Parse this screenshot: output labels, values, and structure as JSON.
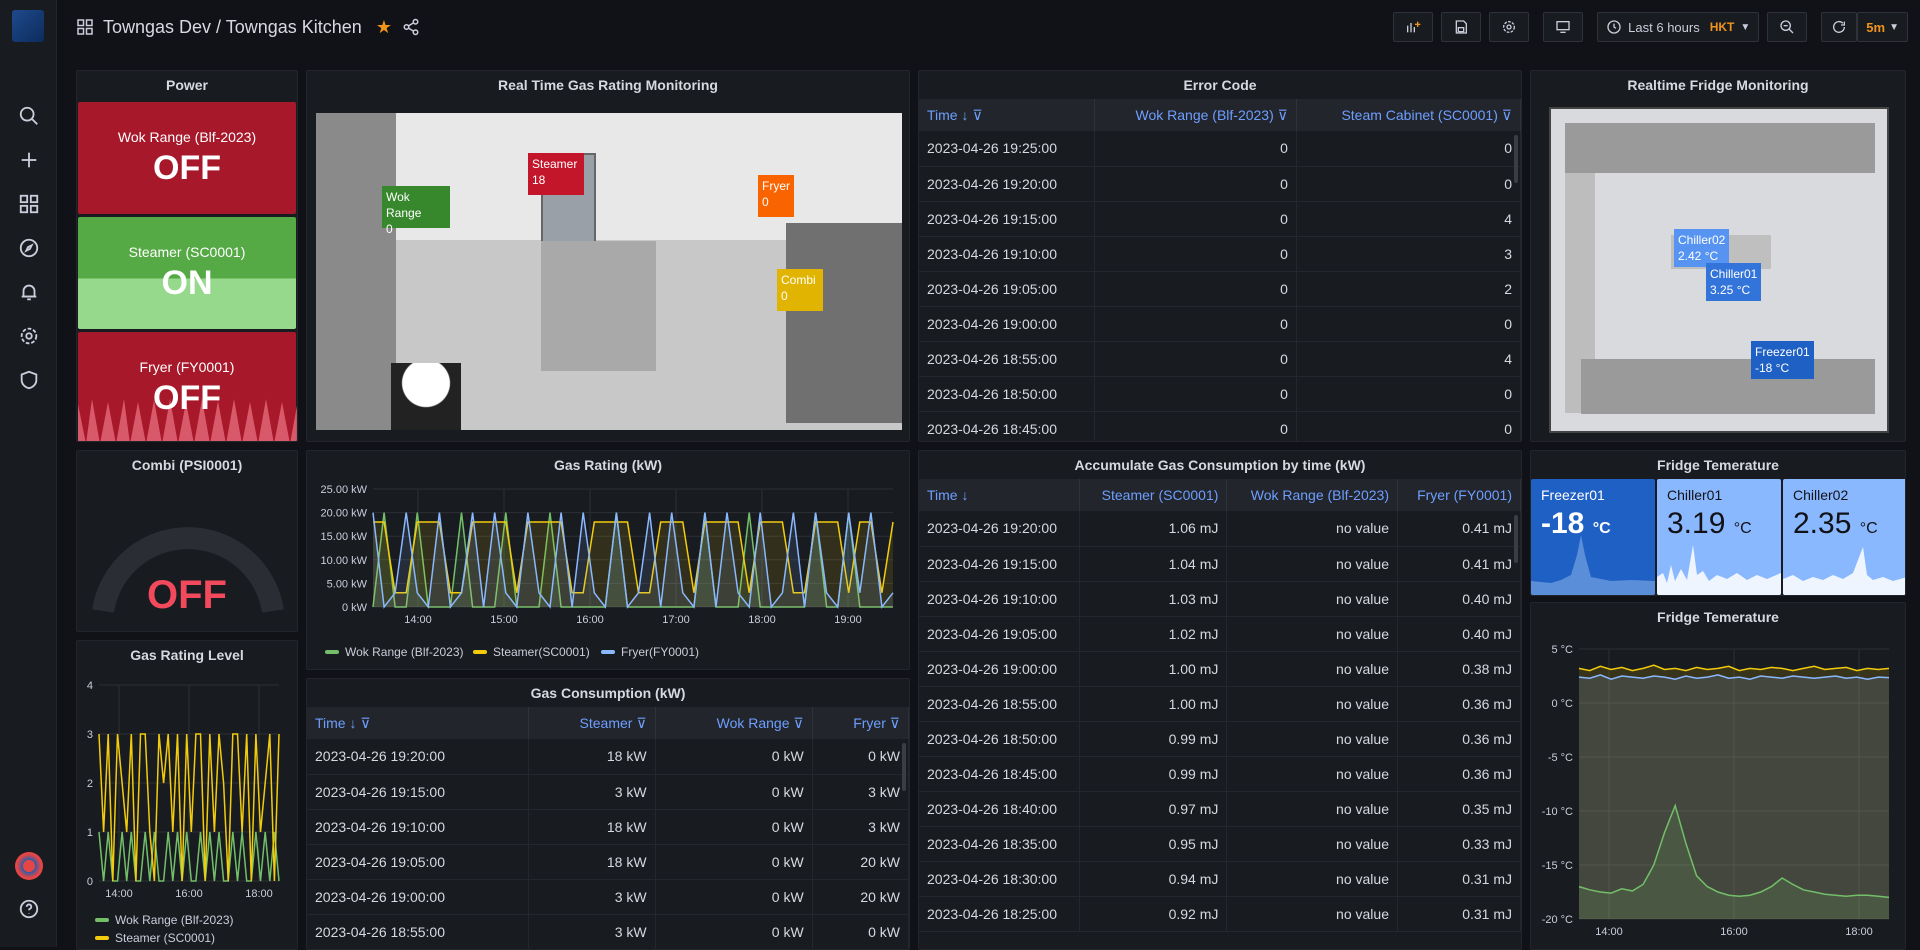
{
  "colors": {
    "red": "#a8182b",
    "green": "#55aa45",
    "blue": "#6e9fff",
    "orange": "#f0941c",
    "yellow": "#e5ac0e",
    "wok": "#73bf69",
    "steamer": "#f2cc0c",
    "fryer": "#8ab8ff"
  },
  "topbar": {
    "title": "Towngas Dev / Towngas Kitchen",
    "time_range": "Last 6 hours",
    "timezone": "HKT",
    "refresh": "5m"
  },
  "power": {
    "title": "Power",
    "items": [
      {
        "label": "Wok Range (Blf-2023)",
        "value": "OFF",
        "color": "#a8182b"
      },
      {
        "label": "Steamer (SC0001)",
        "value": "ON",
        "color": "#55aa45"
      },
      {
        "label": "Fryer (FY0001)",
        "value": "OFF",
        "color": "#a8182b"
      }
    ]
  },
  "gas_rating_monitor": {
    "title": "Real Time Gas Rating Monitoring",
    "tags": [
      {
        "name": "Wok Range",
        "value": "0",
        "color": "#37872d"
      },
      {
        "name": "Steamer",
        "value": "18",
        "color": "#c4162a"
      },
      {
        "name": "Fryer",
        "value": "0",
        "color": "#fa6400"
      },
      {
        "name": "Combi",
        "value": "0",
        "color": "#e0b400"
      }
    ]
  },
  "error_code": {
    "title": "Error Code",
    "columns": [
      "Time",
      "Wok Range (Blf-2023)",
      "Steam Cabinet (SC0001)"
    ],
    "rows": [
      [
        "2023-04-26 19:25:00",
        "0",
        "0"
      ],
      [
        "2023-04-26 19:20:00",
        "0",
        "0"
      ],
      [
        "2023-04-26 19:15:00",
        "0",
        "4"
      ],
      [
        "2023-04-26 19:10:00",
        "0",
        "3"
      ],
      [
        "2023-04-26 19:05:00",
        "0",
        "2"
      ],
      [
        "2023-04-26 19:00:00",
        "0",
        "0"
      ],
      [
        "2023-04-26 18:55:00",
        "0",
        "4"
      ],
      [
        "2023-04-26 18:50:00",
        "0",
        "0"
      ],
      [
        "2023-04-26 18:45:00",
        "0",
        "0"
      ]
    ]
  },
  "fridge_monitor": {
    "title": "Realtime Fridge Monitoring",
    "tags": [
      {
        "name": "Chiller02",
        "value": "2.42 °C",
        "color": "#5794f2"
      },
      {
        "name": "Chiller01",
        "value": "3.25 °C",
        "color": "#3274d9"
      },
      {
        "name": "Freezer01",
        "value": "-18 °C",
        "color": "#1f60c4"
      }
    ]
  },
  "combi": {
    "title": "Combi (PSI0001)",
    "value": "OFF",
    "color": "#f2495c"
  },
  "gas_rating_level": {
    "title": "Gas Rating Level",
    "legend": [
      "Wok Range (Blf-2023)",
      "Steamer (SC0001)"
    ]
  },
  "gas_rating": {
    "title": "Gas Rating (kW)",
    "legend": [
      "Wok Range (Blf-2023)",
      "Steamer(SC0001)",
      "Fryer(FY0001)"
    ]
  },
  "gas_consumption": {
    "title": "Gas Consumption (kW)",
    "columns": [
      "Time",
      "Steamer",
      "Wok Range",
      "Fryer"
    ],
    "rows": [
      [
        "2023-04-26 19:20:00",
        "18 kW",
        "0 kW",
        "0 kW"
      ],
      [
        "2023-04-26 19:15:00",
        "3 kW",
        "0 kW",
        "3 kW"
      ],
      [
        "2023-04-26 19:10:00",
        "18 kW",
        "0 kW",
        "3 kW"
      ],
      [
        "2023-04-26 19:05:00",
        "18 kW",
        "0 kW",
        "20 kW"
      ],
      [
        "2023-04-26 19:00:00",
        "3 kW",
        "0 kW",
        "20 kW"
      ],
      [
        "2023-04-26 18:55:00",
        "3 kW",
        "0 kW",
        "0 kW"
      ]
    ]
  },
  "accumulate": {
    "title": "Accumulate Gas Consumption by time (kW)",
    "columns": [
      "Time",
      "Steamer (SC0001)",
      "Wok Range (Blf-2023)",
      "Fryer (FY0001)"
    ],
    "rows": [
      [
        "2023-04-26 19:20:00",
        "1.06 mJ",
        "no value",
        "0.41 mJ"
      ],
      [
        "2023-04-26 19:15:00",
        "1.04 mJ",
        "no value",
        "0.41 mJ"
      ],
      [
        "2023-04-26 19:10:00",
        "1.03 mJ",
        "no value",
        "0.40 mJ"
      ],
      [
        "2023-04-26 19:05:00",
        "1.02 mJ",
        "no value",
        "0.40 mJ"
      ],
      [
        "2023-04-26 19:00:00",
        "1.00 mJ",
        "no value",
        "0.38 mJ"
      ],
      [
        "2023-04-26 18:55:00",
        "1.00 mJ",
        "no value",
        "0.36 mJ"
      ],
      [
        "2023-04-26 18:50:00",
        "0.99 mJ",
        "no value",
        "0.36 mJ"
      ],
      [
        "2023-04-26 18:45:00",
        "0.99 mJ",
        "no value",
        "0.36 mJ"
      ],
      [
        "2023-04-26 18:40:00",
        "0.97 mJ",
        "no value",
        "0.35 mJ"
      ],
      [
        "2023-04-26 18:35:00",
        "0.95 mJ",
        "no value",
        "0.33 mJ"
      ],
      [
        "2023-04-26 18:30:00",
        "0.94 mJ",
        "no value",
        "0.31 mJ"
      ],
      [
        "2023-04-26 18:25:00",
        "0.92 mJ",
        "no value",
        "0.31 mJ"
      ]
    ]
  },
  "fridge_temp_stat": {
    "title": "Fridge Temerature",
    "cards": [
      {
        "name": "Freezer01",
        "value": "-18",
        "unit": "°C"
      },
      {
        "name": "Chiller01",
        "value": "3.19",
        "unit": "°C"
      },
      {
        "name": "Chiller02",
        "value": "2.35",
        "unit": "°C"
      }
    ]
  },
  "fridge_temp_chart": {
    "title": "Fridge Temerature"
  },
  "chart_data": [
    {
      "type": "line",
      "title": "Gas Rating (kW)",
      "y_ticks": [
        "25.00 kW",
        "20.00 kW",
        "15.00 kW",
        "10.00 kW",
        "5.00 kW",
        "0 kW"
      ],
      "x_ticks": [
        "14:00",
        "15:00",
        "16:00",
        "17:00",
        "18:00",
        "19:00"
      ],
      "ylim": [
        0,
        25
      ],
      "series": [
        {
          "name": "Wok Range (Blf-2023)",
          "color": "#73bf69",
          "values": [
            0,
            20,
            0,
            0,
            20,
            0,
            0,
            0,
            20,
            0,
            0,
            0,
            20,
            0,
            0,
            0,
            20,
            0,
            0,
            0,
            0,
            0,
            20,
            0,
            0,
            0,
            0,
            0,
            0,
            0,
            20,
            0,
            0,
            0,
            20,
            0,
            0,
            0,
            0,
            0,
            20,
            0,
            0,
            20,
            0,
            0,
            0,
            0
          ]
        },
        {
          "name": "Steamer(SC0001)",
          "color": "#f2cc0c",
          "values": [
            18,
            18,
            3,
            3,
            18,
            18,
            18,
            3,
            3,
            18,
            18,
            18,
            18,
            3,
            18,
            18,
            18,
            18,
            3,
            3,
            18,
            18,
            18,
            18,
            3,
            3,
            18,
            18,
            18,
            3,
            18,
            18,
            18,
            18,
            3,
            18,
            18,
            18,
            3,
            3,
            18,
            18,
            18,
            3,
            18,
            18,
            3,
            18
          ]
        },
        {
          "name": "Fryer(FY0001)",
          "color": "#8ab8ff",
          "values": [
            20,
            0,
            3,
            20,
            3,
            0,
            20,
            0,
            3,
            20,
            0,
            20,
            3,
            0,
            20,
            3,
            0,
            20,
            0,
            20,
            3,
            0,
            20,
            0,
            3,
            20,
            0,
            20,
            3,
            0,
            20,
            0,
            20,
            3,
            0,
            20,
            0,
            3,
            20,
            0,
            20,
            3,
            0,
            20,
            3,
            20,
            0,
            3
          ]
        }
      ]
    },
    {
      "type": "line",
      "title": "Gas Rating Level",
      "y_ticks": [
        "4",
        "3",
        "2",
        "1",
        "0"
      ],
      "x_ticks": [
        "14:00",
        "16:00",
        "18:00"
      ],
      "ylim": [
        0,
        4
      ],
      "series": [
        {
          "name": "Wok Range (Blf-2023)",
          "color": "#73bf69",
          "values": [
            1,
            0,
            1,
            0,
            0,
            1,
            0,
            1,
            0,
            0,
            1,
            0,
            1,
            0,
            0,
            1,
            0,
            1,
            0,
            1,
            0,
            0,
            1,
            0,
            1,
            0,
            1,
            0,
            0,
            1,
            0,
            1,
            0,
            0,
            1,
            0,
            1,
            0,
            1,
            0
          ]
        },
        {
          "name": "Steamer (SC0001)",
          "color": "#f2cc0c",
          "values": [
            3,
            1,
            3,
            0,
            3,
            2,
            1,
            3,
            0,
            3,
            3,
            1,
            0,
            3,
            2,
            3,
            1,
            3,
            0,
            3,
            1,
            3,
            3,
            0,
            3,
            1,
            3,
            2,
            0,
            3,
            3,
            1,
            3,
            0,
            3,
            1,
            2,
            3,
            0,
            3
          ]
        }
      ]
    },
    {
      "type": "line",
      "title": "Fridge Temerature",
      "y_ticks": [
        "5 °C",
        "0 °C",
        "-5 °C",
        "-10 °C",
        "-15 °C",
        "-20 °C"
      ],
      "x_ticks": [
        "14:00",
        "16:00",
        "18:00"
      ],
      "ylim": [
        -20,
        5
      ],
      "series": [
        {
          "name": "Chiller01",
          "color": "#f2cc0c",
          "values": [
            3.2,
            3.0,
            3.4,
            3.1,
            3.3,
            3.0,
            3.2,
            3.5,
            3.1,
            3.2,
            3.0,
            3.3,
            3.1,
            3.2,
            3.4,
            3.0,
            3.2,
            3.1,
            3.3,
            3.2,
            3.0,
            3.2,
            3.4,
            3.1,
            3.2,
            3.3,
            3.0,
            3.2,
            3.1,
            3.2
          ]
        },
        {
          "name": "Chiller02",
          "color": "#8ab8ff",
          "values": [
            2.4,
            2.3,
            2.6,
            2.2,
            2.5,
            2.4,
            2.3,
            2.5,
            2.4,
            2.2,
            2.5,
            2.3,
            2.4,
            2.6,
            2.3,
            2.4,
            2.2,
            2.5,
            2.4,
            2.3,
            2.5,
            2.4,
            2.3,
            2.4,
            2.5,
            2.3,
            2.4,
            2.2,
            2.4,
            2.35
          ]
        },
        {
          "name": "Freezer01",
          "color": "#73bf69",
          "values": [
            -17,
            -17.3,
            -17.5,
            -17.6,
            -17.2,
            -17.4,
            -16.8,
            -15,
            -12,
            -9.5,
            -13,
            -16,
            -17,
            -17.5,
            -17.8,
            -17.9,
            -17.8,
            -17.5,
            -17,
            -16.2,
            -16.8,
            -17.3,
            -17.5,
            -17.7,
            -17.8,
            -17.9,
            -17.8,
            -17.8,
            -17.9,
            -18
          ]
        }
      ]
    }
  ]
}
